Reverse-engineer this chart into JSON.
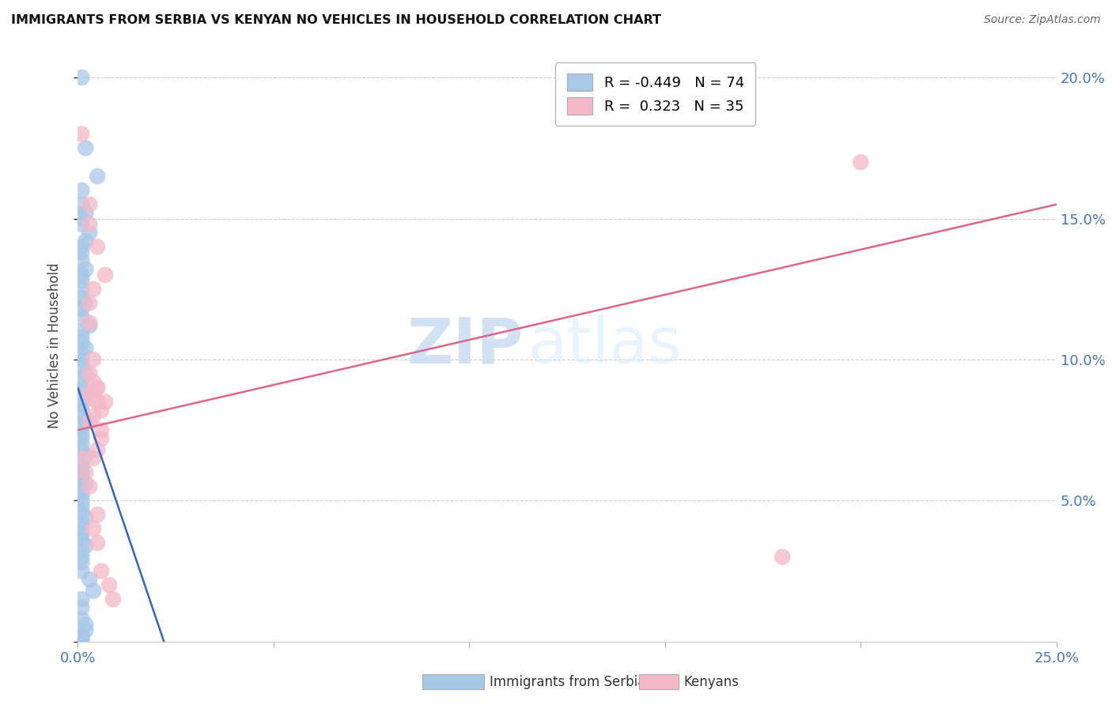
{
  "title": "IMMIGRANTS FROM SERBIA VS KENYAN NO VEHICLES IN HOUSEHOLD CORRELATION CHART",
  "source": "Source: ZipAtlas.com",
  "ylabel": "No Vehicles in Household",
  "legend_blue_R": "-0.449",
  "legend_blue_N": "74",
  "legend_pink_R": "0.323",
  "legend_pink_N": "35",
  "legend_label_blue": "Immigrants from Serbia",
  "legend_label_pink": "Kenyans",
  "blue_color": "#a8c8e8",
  "pink_color": "#f5b8c8",
  "blue_line_color": "#3366bb",
  "pink_line_color": "#dd6688",
  "watermark_zip": "ZIP",
  "watermark_atlas": "atlas",
  "blue_x": [
    0.001,
    0.002,
    0.005,
    0.001,
    0.001,
    0.002,
    0.001,
    0.001,
    0.003,
    0.002,
    0.001,
    0.001,
    0.001,
    0.002,
    0.001,
    0.001,
    0.001,
    0.001,
    0.002,
    0.001,
    0.001,
    0.003,
    0.001,
    0.001,
    0.001,
    0.002,
    0.001,
    0.001,
    0.001,
    0.002,
    0.001,
    0.001,
    0.002,
    0.001,
    0.001,
    0.001,
    0.001,
    0.002,
    0.001,
    0.001,
    0.001,
    0.001,
    0.001,
    0.002,
    0.001,
    0.001,
    0.001,
    0.001,
    0.002,
    0.001,
    0.001,
    0.001,
    0.001,
    0.001,
    0.002,
    0.001,
    0.001,
    0.001,
    0.001,
    0.002,
    0.001,
    0.001,
    0.001,
    0.001,
    0.003,
    0.004,
    0.001,
    0.001,
    0.001,
    0.002,
    0.002,
    0.001,
    0.001,
    0.001
  ],
  "blue_y": [
    0.2,
    0.175,
    0.165,
    0.16,
    0.155,
    0.152,
    0.15,
    0.148,
    0.145,
    0.142,
    0.14,
    0.138,
    0.135,
    0.132,
    0.13,
    0.128,
    0.125,
    0.122,
    0.12,
    0.118,
    0.115,
    0.112,
    0.11,
    0.108,
    0.106,
    0.104,
    0.102,
    0.1,
    0.098,
    0.095,
    0.093,
    0.09,
    0.088,
    0.086,
    0.084,
    0.082,
    0.08,
    0.078,
    0.076,
    0.074,
    0.072,
    0.07,
    0.068,
    0.066,
    0.064,
    0.062,
    0.06,
    0.058,
    0.056,
    0.054,
    0.052,
    0.05,
    0.048,
    0.046,
    0.044,
    0.042,
    0.04,
    0.038,
    0.036,
    0.034,
    0.032,
    0.03,
    0.028,
    0.025,
    0.022,
    0.018,
    0.015,
    0.012,
    0.008,
    0.006,
    0.004,
    0.002,
    0.001,
    0.001
  ],
  "pink_x": [
    0.001,
    0.003,
    0.005,
    0.007,
    0.003,
    0.004,
    0.003,
    0.003,
    0.004,
    0.003,
    0.005,
    0.004,
    0.006,
    0.003,
    0.004,
    0.005,
    0.004,
    0.003,
    0.005,
    0.006,
    0.004,
    0.005,
    0.007,
    0.006,
    0.005,
    0.001,
    0.002,
    0.003,
    0.004,
    0.005,
    0.006,
    0.008,
    0.009,
    0.2,
    0.18
  ],
  "pink_y": [
    0.18,
    0.155,
    0.14,
    0.13,
    0.148,
    0.125,
    0.12,
    0.113,
    0.1,
    0.095,
    0.09,
    0.086,
    0.082,
    0.088,
    0.092,
    0.085,
    0.08,
    0.078,
    0.09,
    0.072,
    0.065,
    0.068,
    0.085,
    0.075,
    0.045,
    0.065,
    0.06,
    0.055,
    0.04,
    0.035,
    0.025,
    0.02,
    0.015,
    0.17,
    0.03
  ],
  "xlim": [
    0.0,
    0.25
  ],
  "ylim": [
    0.0,
    0.21
  ],
  "yticks": [
    0.0,
    0.05,
    0.1,
    0.15,
    0.2
  ],
  "ytick_labels": [
    "",
    "5.0%",
    "10.0%",
    "15.0%",
    "20.0%"
  ],
  "xticks": [
    0.0,
    0.05,
    0.1,
    0.15,
    0.2,
    0.25
  ],
  "xtick_labels": [
    "0.0%",
    "",
    "",
    "",
    "",
    "25.0%"
  ],
  "blue_trend_x0": 0.0,
  "blue_trend_x1": 0.022,
  "blue_trend_y0": 0.09,
  "blue_trend_y1": 0.0,
  "pink_trend_x0": 0.0,
  "pink_trend_x1": 0.25,
  "pink_trend_y0": 0.075,
  "pink_trend_y1": 0.155
}
